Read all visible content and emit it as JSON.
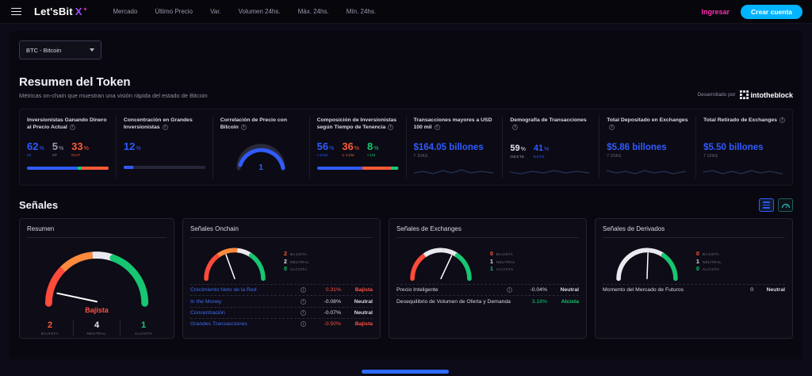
{
  "navbar": {
    "logo_text": "Let'sBit",
    "logo_mark": "X",
    "logo_spark": "✦",
    "items": [
      "Mercado",
      "Último Precio",
      "Var.",
      "Volumen 24hs.",
      "Máx. 24hs.",
      "Mín. 24hs."
    ],
    "login_label": "Ingresar",
    "signup_label": "Crear cuenta"
  },
  "token_selector": {
    "value": "BTC - Bitcoin"
  },
  "token_summary": {
    "title": "Resumen del Token",
    "subtitle": "Métricas on-chain que muestran una visión rápida del estado de Bitcoin",
    "powered_by": "Desarrollado por",
    "powered_brand": "intotheblock",
    "cards": [
      {
        "title": "Inversionistas Ganando Dinero al Precio Actual",
        "stats": [
          {
            "value": "62",
            "unit": "%",
            "label": "IN"
          },
          {
            "value": "5",
            "unit": "%",
            "label": "AT"
          },
          {
            "value": "33",
            "unit": "%",
            "label": "OUT"
          }
        ],
        "bar": [
          62,
          5,
          33
        ]
      },
      {
        "title": "Concentración en Grandes Inversionistas",
        "stats": [
          {
            "value": "12",
            "unit": "%"
          }
        ],
        "bar": [
          12
        ]
      },
      {
        "title": "Correlación de Precio con Bitcoin",
        "gauge_value": "1"
      },
      {
        "title": "Composición de Inversionistas según Tiempo de Tenencia",
        "stats": [
          {
            "value": "56",
            "unit": "%",
            "label": ">12M"
          },
          {
            "value": "36",
            "unit": "%",
            "label": "1-12M"
          },
          {
            "value": "8",
            "unit": "%",
            "label": "<1M"
          }
        ],
        "bar": [
          56,
          36,
          8
        ]
      },
      {
        "title": "Transacciones mayores a USD 100 mil",
        "value": "$164.05 billones",
        "period": "7 DÍAS"
      },
      {
        "title": "Demografía de Transacciones",
        "stats": [
          {
            "value": "59",
            "unit": "%",
            "label": "OESTE"
          },
          {
            "value": "41",
            "unit": "%",
            "label": "ESTE"
          }
        ]
      },
      {
        "title": "Total Depositado en Exchanges",
        "value": "$5.86 billones",
        "period": "7 DÍAS"
      },
      {
        "title": "Total Retirado de Exchanges",
        "value": "$5.50 billones",
        "period": "7 DÍAS"
      }
    ]
  },
  "signals": {
    "title": "Señales",
    "panels": [
      {
        "title": "Resumen",
        "sentiment": "Bajista",
        "needle_angle": -78,
        "counts": [
          {
            "value": "2",
            "label": "BAJISTA"
          },
          {
            "value": "4",
            "label": "NEUTRAL"
          },
          {
            "value": "1",
            "label": "ALCISTA"
          }
        ]
      },
      {
        "title": "Señales Onchain",
        "needle_angle": -20,
        "counts": [
          {
            "value": "2",
            "label": "BAJISTA"
          },
          {
            "value": "2",
            "label": "NEUTRAL"
          },
          {
            "value": "0",
            "label": "ALCISTA"
          }
        ],
        "rows": [
          {
            "label": "Crecimiento Neto de la Red",
            "value": "0.31%",
            "signal": "Bajista"
          },
          {
            "label": "In the Money",
            "value": "-0.08%",
            "signal": "Neutral"
          },
          {
            "label": "Concentración",
            "value": "-0.07%",
            "signal": "Neutral"
          },
          {
            "label": "Grandes Transacciones",
            "value": "-0.50%",
            "signal": "Bajista"
          }
        ]
      },
      {
        "title": "Señales de Exchanges",
        "needle_angle": 25,
        "counts": [
          {
            "value": "0",
            "label": "BAJISTA"
          },
          {
            "value": "1",
            "label": "NEUTRAL"
          },
          {
            "value": "1",
            "label": "ALCISTA"
          }
        ],
        "rows": [
          {
            "label": "Precio Inteligente",
            "value": "-0.04%",
            "signal": "Neutral"
          },
          {
            "label": "Desequilibrio de Volumen de Oferta y Demanda",
            "value": "3.18%",
            "signal": "Alcista"
          }
        ]
      },
      {
        "title": "Señales de Derivados",
        "needle_angle": 2,
        "counts": [
          {
            "value": "0",
            "label": "BAJISTA"
          },
          {
            "value": "1",
            "label": "NEUTRAL"
          },
          {
            "value": "0",
            "label": "ALCISTA"
          }
        ],
        "rows": [
          {
            "label": "Momento del Mercado de Futuros",
            "value": "0",
            "signal": "Neutral"
          }
        ]
      }
    ]
  },
  "colors": {
    "blue": "#2f5bff",
    "red": "#ff5242",
    "orange": "#ff5a36",
    "green": "#14c971",
    "cyan": "#00b4ff",
    "magenta": "#ff2db2",
    "purple": "#a34bff"
  }
}
